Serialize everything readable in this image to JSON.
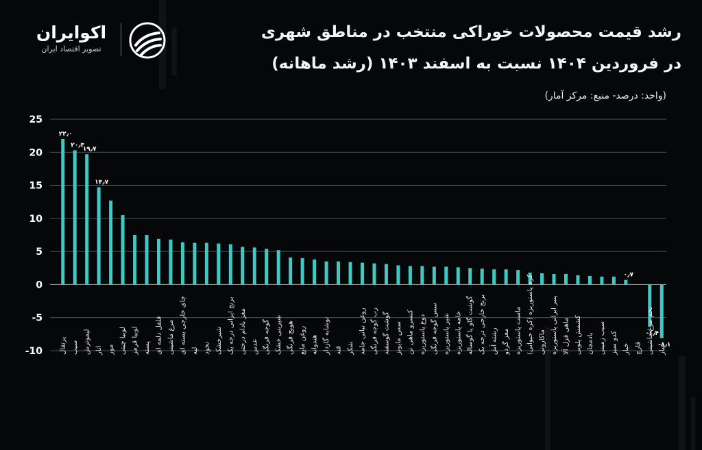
{
  "header": {
    "title_line1": "رشد قیمت محصولات خوراکی منتخب در مناطق شهری",
    "title_line2": "در فروردین ۱۴۰۴ نسبت به اسفند ۱۴۰۳ (رشد ماهانه)",
    "unit_note": "(واحد: درصد- منبع: مرکز آمار)"
  },
  "logo": {
    "name": "اکوایران",
    "tagline": "تصویر اقتصاد ایران"
  },
  "colors": {
    "bar": "#3ec9c4",
    "background": "#060708",
    "grid": "#6a6a6a"
  },
  "chart_data": {
    "type": "bar",
    "title": "رشد قیمت محصولات خوراکی منتخب در مناطق شهری در فروردین ۱۴۰۴ نسبت به اسفند ۱۴۰۳ (رشد ماهانه)",
    "ylim": [
      -10,
      25
    ],
    "yticks": [
      "-10",
      "-5",
      "0",
      "5",
      "10",
      "15",
      "20",
      "25"
    ],
    "ytick_values": [
      -10,
      -5,
      0,
      5,
      10,
      15,
      20,
      25
    ],
    "grid": true,
    "categories": [
      "پرتقال",
      "سیب",
      "لیموترش",
      "انار",
      "موز",
      "لوبیا چیتی",
      "لوبیا قرمز",
      "پسته",
      "فلفل دلمه ای",
      "مرغ ماشینی",
      "چای خارجی بسته ای",
      "لپه",
      "نخود",
      "شیرخشک",
      "برنج ایرانی درجه یک",
      "مغز بادام درختی",
      "عدس",
      "گوجه فرنگی",
      "شیرینی خشک",
      "هویج فرنگی",
      "روغن مایع",
      "هندوانه",
      "نوشابه گازدار",
      "قند",
      "شکر",
      "روغن نباتی جامد",
      "رب گوجه فرنگی",
      "گوشت گوسفند",
      "سس مایونز",
      "کنسرو ماهی تن",
      "دوغ پاستوریزه",
      "سس گوجه فرنگی",
      "شیر پاستوریزه",
      "خامه پاستوریزه",
      "گوشت گاو یا گوساله",
      "برنج خارجی درجه یک",
      "رشته آش",
      "مغز گردو",
      "ماست پاستوریزه",
      "کره پاستوریزه (کره حیوانی)",
      "ماکارونی",
      "پنیر ایرانی پاستوریزه",
      "ماهی قزل آلا",
      "کشمش پلویی",
      "بادمجان",
      "سیب زمینی",
      "کدو سبز",
      "خیار",
      "قارچ",
      "تخم مرغ ماشینی",
      "پیاز"
    ],
    "values": [
      22.0,
      20.3,
      19.7,
      14.7,
      12.7,
      10.5,
      7.5,
      7.5,
      6.9,
      6.8,
      6.4,
      6.3,
      6.3,
      6.2,
      6.1,
      5.7,
      5.6,
      5.4,
      5.2,
      4.1,
      4.0,
      3.8,
      3.5,
      3.5,
      3.4,
      3.3,
      3.2,
      3.1,
      2.9,
      2.8,
      2.8,
      2.7,
      2.7,
      2.6,
      2.5,
      2.4,
      2.3,
      2.3,
      2.2,
      1.8,
      1.7,
      1.6,
      1.6,
      1.4,
      1.3,
      1.2,
      1.2,
      0.7,
      0.0,
      -6.4,
      -8.1
    ],
    "data_labels": [
      "۲۲٫۰",
      "۲۰٫۳",
      "۱۹٫۷",
      "۱۴٫۷",
      "",
      "",
      "",
      "",
      "",
      "",
      "",
      "",
      "",
      "",
      "",
      "",
      "",
      "",
      "",
      "",
      "",
      "",
      "",
      "",
      "",
      "",
      "",
      "",
      "",
      "",
      "",
      "",
      "",
      "",
      "",
      "",
      "",
      "",
      "",
      "",
      "",
      "",
      "",
      "",
      "",
      "",
      "",
      "۰٫۷",
      "",
      "-۶٫۴",
      "-۸٫۱"
    ]
  }
}
